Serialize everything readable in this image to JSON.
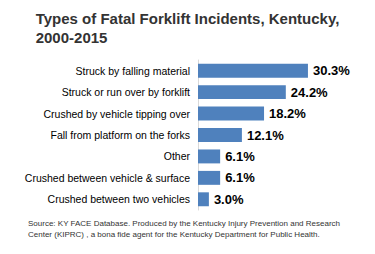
{
  "chart_data": {
    "type": "bar",
    "title": "Types of Fatal Forklift Incidents, Kentucky, 2000-2015",
    "source": "Source: KY FACE Database. Produced by the Kentucky Injury Prevention and Research Center (KIPRC) , a bona fide agent for the Kentucky Department for Public Health.",
    "categories": [
      "Struck by falling material",
      "Struck or run over by forklift",
      "Crushed by vehicle tipping over",
      "Fall from platform on the forks",
      "Other",
      "Crushed between vehicle & surface",
      "Crushed between two vehicles"
    ],
    "values": [
      30.3,
      24.2,
      18.2,
      12.1,
      6.1,
      6.1,
      3.0
    ],
    "value_labels": [
      "30.3%",
      "24.2%",
      "18.2%",
      "12.1%",
      "6.1%",
      "6.1%",
      "3.0%"
    ],
    "color": "#4f81bd",
    "orientation": "horizontal",
    "xlim": [
      0,
      35
    ],
    "grid": false,
    "data_labels": true,
    "tick_labels": "y"
  }
}
